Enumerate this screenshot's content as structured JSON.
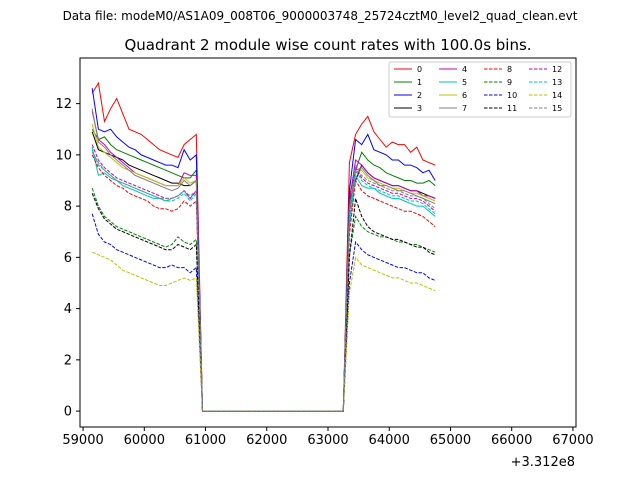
{
  "chart_data": {
    "type": "line",
    "suptitle": "Data file: modeM0/AS1A09_008T06_9000003748_25724cztM0_level2_quad_clean.evt",
    "title": "Quadrant 2 module wise count rates with 100.0s bins.",
    "xlabel": "",
    "ylabel": "",
    "x_offset_label": "+3.312e8",
    "xlim": [
      58950,
      67050
    ],
    "ylim": [
      -0.62,
      13.78
    ],
    "xticks": [
      59000,
      60000,
      61000,
      62000,
      63000,
      64000,
      65000,
      66000,
      67000
    ],
    "yticks": [
      0,
      2,
      4,
      6,
      8,
      10,
      12
    ],
    "grid": false,
    "legend_position": "top-right",
    "x_start": 59150,
    "x_step": 100,
    "gap_after_index": 16,
    "gap_points": 24,
    "series": [
      {
        "name": "0",
        "color": "#ff0000",
        "dash": "solid",
        "first": [
          12.4,
          12.8,
          11.3,
          11.8,
          12.2,
          11.6,
          11.0,
          10.9,
          10.8,
          10.6,
          10.4,
          10.2,
          10.1,
          10.0,
          9.9,
          10.4,
          10.6
        ],
        "middle": 10.8,
        "second": [
          10.8,
          11.2,
          11.5,
          10.9,
          10.6,
          10.3,
          10.5,
          10.4,
          10.4,
          10.1,
          10.3,
          9.8,
          9.7,
          9.6
        ],
        "end": 9.7
      },
      {
        "name": "1",
        "color": "#008000",
        "dash": "solid",
        "first": [
          11.0,
          10.6,
          10.7,
          10.4,
          10.2,
          10.1,
          10.0,
          9.9,
          9.8,
          9.7,
          9.6,
          9.5,
          9.4,
          9.3,
          9.2,
          9.1,
          9.1
        ],
        "middle": 9.4,
        "second": [
          9.4,
          10.1,
          9.8,
          9.6,
          9.5,
          9.3,
          9.2,
          9.1,
          9.0,
          9.0,
          8.9,
          8.9,
          9.0,
          8.8
        ],
        "end": 8.4
      },
      {
        "name": "2",
        "color": "#0000ff",
        "dash": "solid",
        "first": [
          12.6,
          11.0,
          10.9,
          11.0,
          10.7,
          10.5,
          10.3,
          10.2,
          10.0,
          9.9,
          9.8,
          9.7,
          9.6,
          9.6,
          9.5,
          10.2,
          9.8
        ],
        "middle": 10.0,
        "second": [
          10.6,
          10.4,
          10.8,
          10.2,
          10.1,
          10.0,
          9.8,
          9.8,
          9.6,
          9.6,
          9.5,
          9.3,
          9.4,
          9.0
        ],
        "end": 8.6
      },
      {
        "name": "3",
        "color": "#000000",
        "dash": "solid",
        "first": [
          10.9,
          10.2,
          10.1,
          10.0,
          9.9,
          9.8,
          9.6,
          9.5,
          9.4,
          9.3,
          9.2,
          9.1,
          9.0,
          8.9,
          8.9,
          8.8,
          8.8
        ],
        "middle": 9.0,
        "second": [
          9.0,
          9.6,
          9.3,
          9.1,
          9.0,
          8.9,
          8.8,
          8.8,
          8.7,
          8.6,
          8.6,
          8.5,
          8.4,
          8.3
        ],
        "end": 8.2
      },
      {
        "name": "4",
        "color": "#bf00bf",
        "dash": "solid",
        "first": [
          11.7,
          10.6,
          10.4,
          10.1,
          9.9,
          9.7,
          9.5,
          9.3,
          9.2,
          9.1,
          9.0,
          8.9,
          8.8,
          8.8,
          8.8,
          9.3,
          9.2
        ],
        "middle": 9.2,
        "second": [
          9.8,
          9.6,
          9.3,
          9.1,
          9.0,
          8.9,
          8.8,
          8.8,
          8.7,
          8.6,
          8.6,
          8.4,
          8.4,
          8.3
        ],
        "end": 8.2
      },
      {
        "name": "5",
        "color": "#00bfbf",
        "dash": "solid",
        "first": [
          10.3,
          9.2,
          9.3,
          9.1,
          9.0,
          8.8,
          8.7,
          8.6,
          8.5,
          8.4,
          8.3,
          8.3,
          8.2,
          8.3,
          8.4,
          8.6,
          8.3
        ],
        "middle": 8.6,
        "second": [
          9.2,
          8.8,
          8.7,
          8.7,
          8.5,
          8.4,
          8.3,
          8.3,
          8.2,
          8.1,
          8.0,
          8.0,
          7.8,
          7.6
        ],
        "end": 7.2
      },
      {
        "name": "6",
        "color": "#bfbf00",
        "dash": "solid",
        "first": [
          11.2,
          10.3,
          10.1,
          9.9,
          9.7,
          9.5,
          9.4,
          9.3,
          9.2,
          9.1,
          9.0,
          8.9,
          8.8,
          8.8,
          8.8,
          9.1,
          8.9
        ],
        "middle": 9.0,
        "second": [
          9.3,
          9.4,
          9.1,
          9.0,
          8.9,
          8.8,
          8.7,
          8.7,
          8.6,
          8.5,
          8.5,
          8.4,
          8.3,
          8.2
        ],
        "end": 7.8
      },
      {
        "name": "7",
        "color": "#808080",
        "dash": "solid",
        "first": [
          11.8,
          10.5,
          10.3,
          10.0,
          9.8,
          9.6,
          9.4,
          9.2,
          9.1,
          9.0,
          8.9,
          8.8,
          8.7,
          8.6,
          8.7,
          9.0,
          8.8
        ],
        "middle": 9.0,
        "second": [
          9.4,
          9.5,
          9.2,
          9.0,
          8.8,
          8.8,
          8.7,
          8.6,
          8.6,
          8.5,
          8.4,
          8.3,
          8.2,
          8.1
        ],
        "end": 7.9
      },
      {
        "name": "8",
        "color": "#ff0000",
        "dash": "dashed",
        "first": [
          10.0,
          9.5,
          9.2,
          9.0,
          8.8,
          8.7,
          8.5,
          8.4,
          8.3,
          8.2,
          8.0,
          7.9,
          7.9,
          7.8,
          7.9,
          8.2,
          8.0
        ],
        "middle": 8.2,
        "second": [
          9.0,
          8.6,
          8.4,
          8.3,
          8.2,
          8.1,
          8.0,
          7.9,
          7.8,
          7.8,
          7.7,
          7.6,
          7.4,
          7.2
        ],
        "end": 6.9
      },
      {
        "name": "9",
        "color": "#008000",
        "dash": "dashed",
        "first": [
          8.7,
          8.0,
          7.6,
          7.4,
          7.2,
          7.1,
          7.0,
          6.9,
          6.8,
          6.7,
          6.6,
          6.5,
          6.4,
          6.5,
          6.8,
          6.6,
          6.5
        ],
        "middle": 6.7,
        "second": [
          7.6,
          7.2,
          7.0,
          6.9,
          6.8,
          6.8,
          6.7,
          6.6,
          6.6,
          6.5,
          6.5,
          6.4,
          6.3,
          6.2
        ],
        "end": 6.1
      },
      {
        "name": "10",
        "color": "#0000ff",
        "dash": "dashed",
        "first": [
          7.7,
          6.9,
          6.6,
          6.5,
          6.3,
          6.2,
          6.1,
          6.0,
          5.9,
          5.8,
          5.7,
          5.6,
          5.6,
          5.7,
          5.6,
          5.6,
          5.4
        ],
        "middle": 5.6,
        "second": [
          6.6,
          6.3,
          6.1,
          6.0,
          5.9,
          5.8,
          5.7,
          5.6,
          5.6,
          5.5,
          5.4,
          5.4,
          5.2,
          5.1
        ],
        "end": 5.0
      },
      {
        "name": "11",
        "color": "#000000",
        "dash": "dashed",
        "first": [
          8.5,
          7.9,
          7.5,
          7.3,
          7.1,
          7.0,
          6.9,
          6.8,
          6.7,
          6.6,
          6.5,
          6.4,
          6.3,
          6.3,
          6.5,
          6.4,
          6.3
        ],
        "middle": 6.5,
        "second": [
          8.3,
          7.6,
          7.2,
          7.0,
          6.9,
          6.8,
          6.7,
          6.7,
          6.6,
          6.5,
          6.4,
          6.4,
          6.2,
          6.1
        ],
        "end": 6.0
      },
      {
        "name": "12",
        "color": "#bf00bf",
        "dash": "dashed",
        "first": [
          10.4,
          9.8,
          9.5,
          9.3,
          9.1,
          9.0,
          8.9,
          8.8,
          8.7,
          8.6,
          8.5,
          8.4,
          8.3,
          8.3,
          8.4,
          8.6,
          8.3
        ],
        "middle": 8.6,
        "second": [
          9.5,
          9.1,
          8.9,
          8.8,
          8.7,
          8.6,
          8.5,
          8.5,
          8.4,
          8.3,
          8.3,
          8.2,
          8.0,
          7.8
        ],
        "end": 7.6
      },
      {
        "name": "13",
        "color": "#00bfbf",
        "dash": "dashed",
        "first": [
          10.2,
          9.6,
          9.4,
          9.2,
          9.0,
          8.9,
          8.8,
          8.7,
          8.6,
          8.5,
          8.4,
          8.3,
          8.2,
          8.2,
          8.3,
          8.5,
          8.2
        ],
        "middle": 8.5,
        "second": [
          9.4,
          9.0,
          8.8,
          8.7,
          8.6,
          8.5,
          8.4,
          8.4,
          8.3,
          8.2,
          8.2,
          8.1,
          7.9,
          7.7
        ],
        "end": 7.5
      },
      {
        "name": "14",
        "color": "#bfbf00",
        "dash": "dashed",
        "first": [
          6.2,
          6.1,
          6.0,
          5.9,
          5.7,
          5.5,
          5.4,
          5.3,
          5.2,
          5.1,
          5.0,
          4.9,
          4.9,
          5.0,
          5.1,
          5.2,
          5.1
        ],
        "middle": 5.2,
        "second": [
          6.0,
          5.7,
          5.6,
          5.5,
          5.4,
          5.3,
          5.2,
          5.2,
          5.1,
          5.0,
          5.0,
          4.9,
          4.8,
          4.7
        ],
        "end": 4.6
      },
      {
        "name": "15",
        "color": "#808080",
        "dash": "dashed",
        "first": [
          10.1,
          9.7,
          9.4,
          9.2,
          9.0,
          8.9,
          8.8,
          8.7,
          8.6,
          8.5,
          8.4,
          8.3,
          8.3,
          8.3,
          8.4,
          8.6,
          8.4
        ],
        "middle": 8.6,
        "second": [
          9.6,
          9.2,
          9.0,
          8.9,
          8.8,
          8.7,
          8.6,
          8.6,
          8.5,
          8.4,
          8.4,
          8.3,
          8.1,
          7.9
        ],
        "end": 7.7
      }
    ]
  }
}
